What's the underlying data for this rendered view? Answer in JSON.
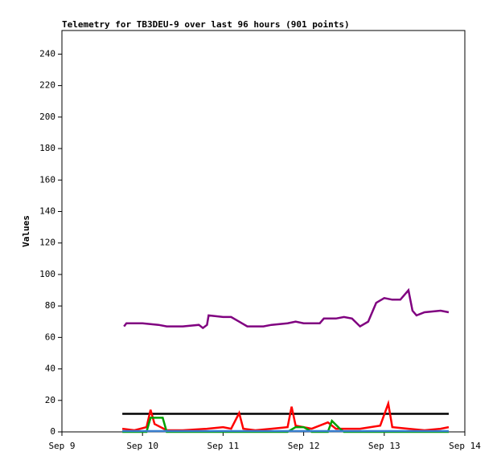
{
  "chart_data": {
    "type": "line",
    "title": "Telemetry for TB3DEU-9 over last 96 hours (901 points)",
    "ylabel": "Values",
    "xlim": [
      9,
      14
    ],
    "xticks": [
      {
        "value": 9,
        "label": "Sep 9"
      },
      {
        "value": 10,
        "label": "Sep 10"
      },
      {
        "value": 11,
        "label": "Sep 11"
      },
      {
        "value": 12,
        "label": "Sep 12"
      },
      {
        "value": 13,
        "label": "Sep 13"
      },
      {
        "value": 14,
        "label": "Sep 14"
      }
    ],
    "ylim": [
      0,
      255
    ],
    "yticks": [
      0,
      20,
      40,
      60,
      80,
      100,
      120,
      140,
      160,
      180,
      200,
      220,
      240
    ],
    "series": [
      {
        "color": "#000000",
        "x": [
          9.75,
          10.5,
          11.25,
          12.0,
          12.75,
          13.5,
          13.8
        ],
        "values": [
          11.5,
          11.5,
          11.5,
          11.5,
          11.5,
          11.5,
          11.5
        ]
      },
      {
        "color": "#ff0000",
        "x": [
          9.75,
          9.9,
          10.05,
          10.1,
          10.15,
          10.3,
          10.5,
          10.8,
          11.0,
          11.1,
          11.2,
          11.25,
          11.4,
          11.6,
          11.8,
          11.85,
          11.9,
          12.1,
          12.3,
          12.4,
          12.7,
          12.95,
          13.05,
          13.1,
          13.3,
          13.5,
          13.7,
          13.8
        ],
        "values": [
          2,
          1,
          3,
          14,
          5,
          1,
          1,
          2,
          3,
          2,
          12,
          2,
          1,
          2,
          3,
          16,
          4,
          2,
          6,
          2,
          2,
          4,
          18,
          3,
          2,
          1,
          2,
          3
        ]
      },
      {
        "color": "#00a000",
        "x": [
          9.75,
          10.05,
          10.1,
          10.25,
          10.3,
          11.8,
          11.9,
          12.0,
          12.1,
          12.3,
          12.35,
          12.45,
          12.5,
          13.8
        ],
        "values": [
          0,
          0,
          9,
          9,
          0,
          0,
          3,
          3,
          0,
          0,
          7,
          2,
          0,
          0
        ]
      },
      {
        "color": "#3a7fd0",
        "x": [
          9.75,
          10.5,
          11.5,
          12.5,
          13.5,
          13.8
        ],
        "values": [
          0.5,
          0.5,
          0.5,
          0.5,
          0.5,
          0.5
        ]
      },
      {
        "color": "#800080",
        "x": [
          9.77,
          9.8,
          9.9,
          10.0,
          10.2,
          10.3,
          10.5,
          10.7,
          10.75,
          10.8,
          10.82,
          11.0,
          11.1,
          11.2,
          11.3,
          11.5,
          11.6,
          11.8,
          11.9,
          12.0,
          12.2,
          12.25,
          12.4,
          12.5,
          12.6,
          12.7,
          12.8,
          12.85,
          12.9,
          13.0,
          13.1,
          13.2,
          13.3,
          13.35,
          13.4,
          13.5,
          13.7,
          13.8
        ],
        "values": [
          67,
          69,
          69,
          69,
          68,
          67,
          67,
          68,
          66,
          68,
          74,
          73,
          73,
          70,
          67,
          67,
          68,
          69,
          70,
          69,
          69,
          72,
          72,
          73,
          72,
          67,
          70,
          76,
          82,
          85,
          84,
          84,
          90,
          77,
          74,
          76,
          77,
          76
        ]
      }
    ]
  }
}
